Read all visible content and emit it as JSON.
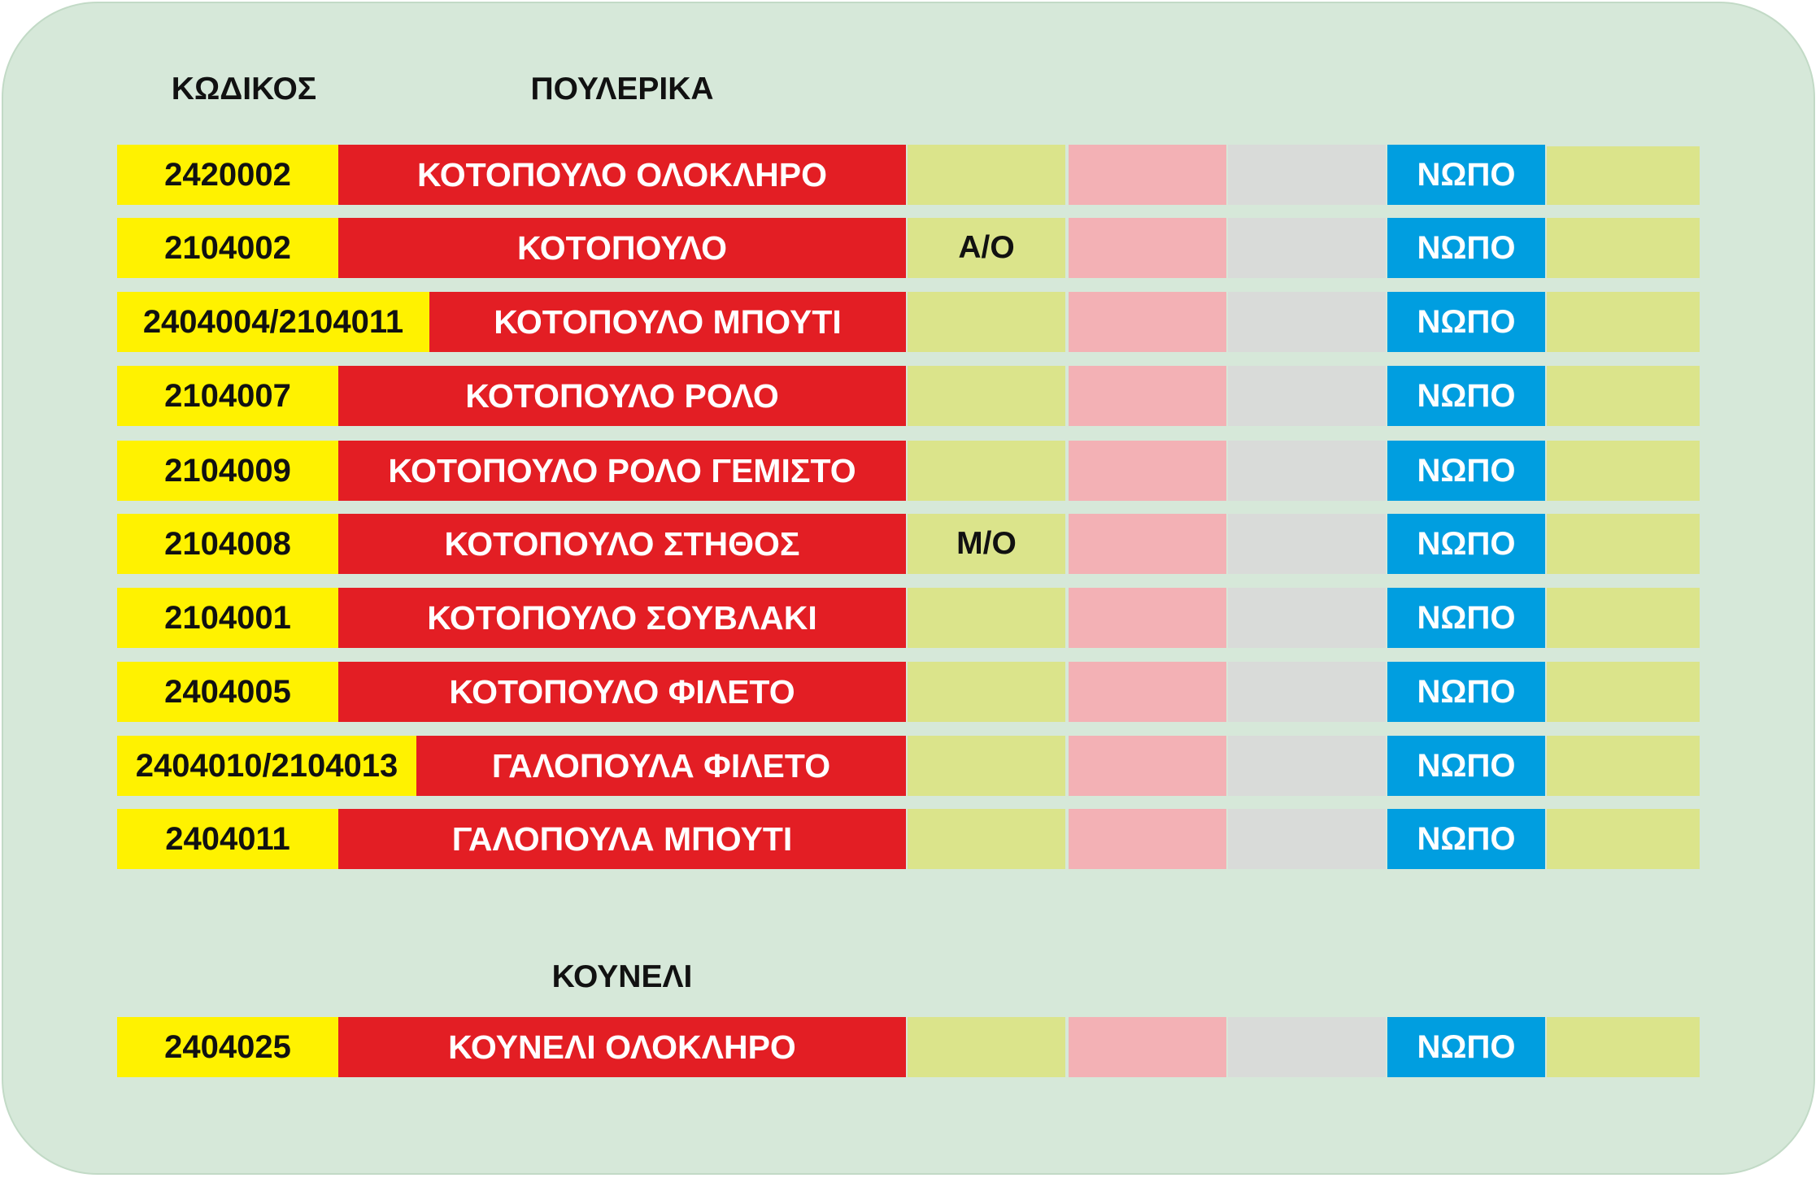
{
  "headers": {
    "code": "ΚΩΔΙΚΟΣ",
    "section_poultry": "ΠΟΥΛΕΡΙΚΑ",
    "section_rabbit": "ΚΟΥΝΕΛΙ"
  },
  "poultry_rows": [
    {
      "code": "2420002",
      "name": "ΚΟΤΟΠΟΥΛΟ ΟΛΟΚΛΗΡΟ",
      "type": "",
      "status": "ΝΩΠΟ"
    },
    {
      "code": "2104002",
      "name": "ΚΟΤΟΠΟΥΛΟ",
      "type": "Α/Ο",
      "status": "ΝΩΠΟ"
    },
    {
      "code": "2404004/2104011",
      "name": "ΚΟΤΟΠΟΥΛΟ ΜΠΟΥΤΙ",
      "type": "",
      "status": "ΝΩΠΟ"
    },
    {
      "code": "2104007",
      "name": "ΚΟΤΟΠΟΥΛΟ ΡΟΛΟ",
      "type": "",
      "status": "ΝΩΠΟ"
    },
    {
      "code": "2104009",
      "name": "ΚΟΤΟΠΟΥΛΟ ΡΟΛΟ ΓΕΜΙΣΤΟ",
      "type": "",
      "status": "ΝΩΠΟ"
    },
    {
      "code": "2104008",
      "name": "ΚΟΤΟΠΟΥΛΟ ΣΤΗΘΟΣ",
      "type": "Μ/Ο",
      "status": "ΝΩΠΟ"
    },
    {
      "code": "2104001",
      "name": "ΚΟΤΟΠΟΥΛΟ ΣΟΥΒΛΑΚΙ",
      "type": "",
      "status": "ΝΩΠΟ"
    },
    {
      "code": "2404005",
      "name": "ΚΟΤΟΠΟΥΛΟ ΦΙΛΕΤΟ",
      "type": "",
      "status": "ΝΩΠΟ"
    },
    {
      "code": "2404010/2104013",
      "name": "ΓΑΛΟΠΟΥΛΑ ΦΙΛΕΤΟ",
      "type": "",
      "status": "ΝΩΠΟ"
    },
    {
      "code": "2404011",
      "name": "ΓΑΛΟΠΟΥΛΑ ΜΠΟΥΤΙ",
      "type": "",
      "status": "ΝΩΠΟ"
    }
  ],
  "rabbit_rows": [
    {
      "code": "2404025",
      "name": "ΚΟΥΝΕΛΙ ΟΛΟΚΛΗΡΟ",
      "type": "",
      "status": "ΝΩΠΟ"
    }
  ],
  "colors": {
    "panel": "#d6e8d9",
    "code_cell": "#fff200",
    "name_cell": "#e31e24",
    "type_cell": "#dbe48b",
    "pink_cell": "#f3b1b5",
    "grey_cell": "#d9dbd9",
    "status_cell": "#009ee0",
    "last_cell": "#dbe48b"
  }
}
